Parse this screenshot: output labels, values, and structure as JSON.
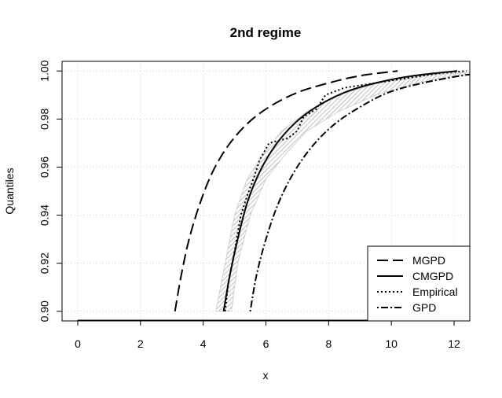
{
  "chart_data": {
    "type": "line",
    "title": "2nd regime",
    "xlabel": "x",
    "ylabel": "Quantiles",
    "xlim": [
      -0.5,
      12.5
    ],
    "ylim": [
      0.896,
      1.004
    ],
    "xticks": [
      0,
      2,
      4,
      6,
      8,
      10,
      12
    ],
    "xtick_labels": [
      "0",
      "2",
      "4",
      "6",
      "8",
      "10",
      "12"
    ],
    "yticks": [
      0.9,
      0.92,
      0.94,
      0.96,
      0.98,
      1.0
    ],
    "ytick_labels": [
      "0.90",
      "0.92",
      "0.94",
      "0.96",
      "0.98",
      "1.00"
    ],
    "grid": true,
    "legend_position": "bottom-right",
    "band": {
      "color": "#c8c8c8",
      "lower": [
        [
          4.4,
          0.9
        ],
        [
          4.7,
          0.92
        ],
        [
          5.0,
          0.94
        ],
        [
          5.4,
          0.955
        ],
        [
          5.9,
          0.965
        ],
        [
          6.5,
          0.975
        ],
        [
          7.3,
          0.983
        ],
        [
          8.3,
          0.99
        ],
        [
          9.6,
          0.995
        ],
        [
          11.0,
          0.998
        ],
        [
          12.5,
          0.9995
        ]
      ],
      "upper": [
        [
          4.9,
          0.9
        ],
        [
          5.1,
          0.92
        ],
        [
          5.5,
          0.94
        ],
        [
          6.0,
          0.955
        ],
        [
          6.6,
          0.965
        ],
        [
          7.3,
          0.975
        ],
        [
          8.3,
          0.983
        ],
        [
          9.5,
          0.99
        ],
        [
          10.8,
          0.995
        ],
        [
          12.0,
          0.998
        ],
        [
          12.5,
          0.9985
        ]
      ]
    },
    "series": [
      {
        "name": "MGPD",
        "dash": "long",
        "points": [
          [
            3.1,
            0.9
          ],
          [
            3.3,
            0.915
          ],
          [
            3.55,
            0.93
          ],
          [
            3.9,
            0.945
          ],
          [
            4.3,
            0.958
          ],
          [
            4.8,
            0.969
          ],
          [
            5.4,
            0.978
          ],
          [
            6.1,
            0.985
          ],
          [
            7.0,
            0.991
          ],
          [
            8.0,
            0.995
          ],
          [
            9.0,
            0.998
          ],
          [
            10.2,
            1.0
          ]
        ]
      },
      {
        "name": "CMGPD",
        "dash": "solid",
        "points": [
          [
            4.65,
            0.9
          ],
          [
            4.85,
            0.915
          ],
          [
            5.1,
            0.93
          ],
          [
            5.4,
            0.945
          ],
          [
            5.8,
            0.958
          ],
          [
            6.3,
            0.969
          ],
          [
            6.9,
            0.978
          ],
          [
            7.6,
            0.985
          ],
          [
            8.5,
            0.991
          ],
          [
            9.5,
            0.995
          ],
          [
            10.7,
            0.998
          ],
          [
            12.1,
            1.0
          ]
        ]
      },
      {
        "name": "Empirical",
        "dash": "dotted",
        "points": [
          [
            4.7,
            0.9
          ],
          [
            4.8,
            0.912
          ],
          [
            5.0,
            0.925
          ],
          [
            5.2,
            0.94
          ],
          [
            5.4,
            0.948
          ],
          [
            5.6,
            0.955
          ],
          [
            5.8,
            0.963
          ],
          [
            6.1,
            0.97
          ],
          [
            6.7,
            0.972
          ],
          [
            7.0,
            0.975
          ],
          [
            7.2,
            0.981
          ],
          [
            7.6,
            0.984
          ],
          [
            7.9,
            0.99
          ],
          [
            8.5,
            0.993
          ],
          [
            9.5,
            0.995
          ],
          [
            10.5,
            0.997
          ],
          [
            11.5,
            0.999
          ],
          [
            12.4,
            1.0
          ]
        ]
      },
      {
        "name": "GPD",
        "dash": "dotdash",
        "points": [
          [
            5.5,
            0.9
          ],
          [
            5.7,
            0.915
          ],
          [
            6.0,
            0.93
          ],
          [
            6.4,
            0.945
          ],
          [
            6.9,
            0.958
          ],
          [
            7.5,
            0.969
          ],
          [
            8.2,
            0.978
          ],
          [
            9.0,
            0.985
          ],
          [
            9.9,
            0.991
          ],
          [
            11.0,
            0.995
          ],
          [
            12.2,
            0.998
          ],
          [
            12.5,
            0.9985
          ]
        ]
      }
    ]
  }
}
